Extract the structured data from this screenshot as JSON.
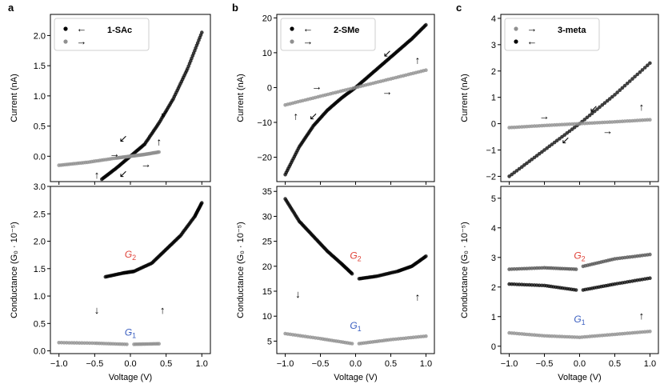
{
  "chart_data": [
    {
      "panel": "a",
      "type": "scatter",
      "legend_title": "1-SAc",
      "legend": [
        {
          "arrow": "←",
          "color": "#000000"
        },
        {
          "arrow": "→",
          "color": "#909090"
        }
      ],
      "top": {
        "ylabel": "Current (nA)",
        "ylim": [
          -0.42,
          2.35
        ],
        "yticks": [
          {
            "v": -0.5,
            "label": ""
          },
          {
            "v": 0.0,
            "label": "0.0"
          },
          {
            "v": 0.5,
            "label": "0.5"
          },
          {
            "v": 1.0,
            "label": "1.0"
          },
          {
            "v": 1.5,
            "label": "1.5"
          },
          {
            "v": 2.0,
            "label": "2.0"
          }
        ],
        "series": [
          {
            "color": "#000000",
            "x": [
              -0.4,
              -0.2,
              0,
              0.2,
              0.4,
              0.6,
              0.8,
              1.0
            ],
            "y": [
              -0.38,
              -0.2,
              0.0,
              0.2,
              0.55,
              0.95,
              1.45,
              2.05
            ]
          },
          {
            "color": "#909090",
            "x": [
              -1.0,
              -0.6,
              -0.2,
              0,
              0.2,
              0.4
            ],
            "y": [
              -0.15,
              -0.1,
              -0.03,
              0.0,
              0.03,
              0.07
            ]
          }
        ],
        "annotations": [
          {
            "text": "↑",
            "x": -0.47,
            "y": -0.3
          },
          {
            "text": "→",
            "x": -0.22,
            "y": 0.05
          },
          {
            "text": "↙",
            "x": -0.1,
            "y": 0.3
          },
          {
            "text": "↙",
            "x": -0.1,
            "y": -0.28
          },
          {
            "text": "→",
            "x": 0.22,
            "y": -0.12
          },
          {
            "text": "↑",
            "x": 0.4,
            "y": 0.25
          },
          {
            "text": "↙",
            "x": 0.48,
            "y": 0.72
          }
        ]
      },
      "bottom": {
        "ylabel": "Conductance (G₀ · 10⁻⁵)",
        "ylim": [
          -0.05,
          3.0
        ],
        "yticks": [
          {
            "v": 0.0,
            "label": "0.0"
          },
          {
            "v": 0.5,
            "label": "0.5"
          },
          {
            "v": 1.0,
            "label": "1.0"
          },
          {
            "v": 1.5,
            "label": "1.5"
          },
          {
            "v": 2.0,
            "label": "2.0"
          },
          {
            "v": 2.5,
            "label": "2.5"
          },
          {
            "v": 3.0,
            "label": "3.0"
          }
        ],
        "series": [
          {
            "color": "#000000",
            "x": [
              -0.35,
              -0.1,
              0.05,
              0.3,
              0.5,
              0.7,
              0.9,
              1.0
            ],
            "y": [
              1.35,
              1.42,
              1.45,
              1.6,
              1.85,
              2.1,
              2.45,
              2.7
            ]
          },
          {
            "color": "#909090",
            "x": [
              -1.0,
              -0.5,
              -0.05,
              0.05,
              0.4
            ],
            "y": [
              0.15,
              0.14,
              0.12,
              0.12,
              0.13
            ]
          }
        ],
        "labels": [
          {
            "name": "G",
            "sub": "2",
            "color": "#e0443a",
            "x": 0.0,
            "y": 1.7
          },
          {
            "name": "G",
            "sub": "1",
            "color": "#3b5fc0",
            "x": 0.0,
            "y": 0.28
          }
        ],
        "annotations": [
          {
            "text": "↓",
            "x": -0.47,
            "y": 0.75
          },
          {
            "text": "↑",
            "x": 0.45,
            "y": 0.75
          }
        ]
      }
    },
    {
      "panel": "b",
      "type": "scatter",
      "legend_title": "2-SMe",
      "legend": [
        {
          "arrow": "←",
          "color": "#000000"
        },
        {
          "arrow": "→",
          "color": "#909090"
        }
      ],
      "top": {
        "ylabel": "Current (nA)",
        "ylim": [
          -27,
          21
        ],
        "yticks": [
          {
            "v": -20,
            "label": "−20"
          },
          {
            "v": -10,
            "label": "−10"
          },
          {
            "v": 0,
            "label": "0"
          },
          {
            "v": 10,
            "label": "10"
          },
          {
            "v": 20,
            "label": "20"
          }
        ],
        "series": [
          {
            "color": "#000000",
            "x": [
              -1.0,
              -0.8,
              -0.6,
              -0.4,
              -0.2,
              0,
              0.2,
              0.4,
              0.6,
              0.8,
              1.0
            ],
            "y": [
              -25,
              -17,
              -11,
              -6.5,
              -3,
              0,
              3.5,
              7,
              10.5,
              14,
              18
            ]
          },
          {
            "color": "#909090",
            "x": [
              -1.0,
              -0.5,
              0,
              0.5,
              1.0
            ],
            "y": [
              -5,
              -2.5,
              0,
              2.5,
              5
            ]
          }
        ],
        "annotations": [
          {
            "text": "→",
            "x": -0.55,
            "y": 0.5
          },
          {
            "text": "↙",
            "x": 0.45,
            "y": 10
          },
          {
            "text": "→",
            "x": 0.45,
            "y": -1
          },
          {
            "text": "↑",
            "x": -0.85,
            "y": -8
          },
          {
            "text": "↙",
            "x": -0.6,
            "y": -8
          },
          {
            "text": "↑",
            "x": 0.88,
            "y": 8
          }
        ]
      },
      "bottom": {
        "ylabel": "Conductance (G₀ · 10⁻⁵)",
        "ylim": [
          2.5,
          36
        ],
        "yticks": [
          {
            "v": 5,
            "label": "5"
          },
          {
            "v": 10,
            "label": "10"
          },
          {
            "v": 15,
            "label": "15"
          },
          {
            "v": 20,
            "label": "20"
          },
          {
            "v": 25,
            "label": "25"
          },
          {
            "v": 30,
            "label": "30"
          },
          {
            "v": 35,
            "label": "35"
          }
        ],
        "series": [
          {
            "color": "#000000",
            "x": [
              -1.0,
              -0.8,
              -0.6,
              -0.4,
              -0.2,
              -0.05,
              0.05,
              0.3,
              0.6,
              0.8,
              1.0
            ],
            "y": [
              33.5,
              29,
              26,
              23,
              20.5,
              18.5,
              17.5,
              18,
              19,
              20,
              22
            ]
          },
          {
            "color": "#909090",
            "x": [
              -1.0,
              -0.5,
              -0.05,
              0.05,
              0.5,
              1.0
            ],
            "y": [
              6.5,
              5.5,
              4.5,
              4.5,
              5.3,
              6.0
            ]
          }
        ],
        "labels": [
          {
            "name": "G",
            "sub": "2",
            "color": "#e0443a",
            "x": 0.0,
            "y": 21.5
          },
          {
            "name": "G",
            "sub": "1",
            "color": "#3b5fc0",
            "x": 0.0,
            "y": 7.5
          }
        ],
        "annotations": [
          {
            "text": "↓",
            "x": -0.82,
            "y": 14.5
          },
          {
            "text": "↑",
            "x": 0.88,
            "y": 14
          }
        ]
      }
    },
    {
      "panel": "c",
      "type": "scatter",
      "legend_title": "3-meta",
      "legend": [
        {
          "arrow": "→",
          "color": "#909090"
        },
        {
          "arrow": "←",
          "color": "#000000"
        }
      ],
      "top": {
        "ylabel": "Current (nA)",
        "ylim": [
          -2.2,
          4.15
        ],
        "yticks": [
          {
            "v": -2,
            "label": "−2"
          },
          {
            "v": -1,
            "label": "−1"
          },
          {
            "v": 0,
            "label": "0"
          },
          {
            "v": 1,
            "label": "1"
          },
          {
            "v": 2,
            "label": "2"
          },
          {
            "v": 3,
            "label": "3"
          },
          {
            "v": 4,
            "label": "4"
          }
        ],
        "series": [
          {
            "color": "#000000",
            "x": [
              -1.0,
              -0.5,
              0,
              0.5,
              1.0
            ],
            "y": [
              -2.0,
              -1.0,
              0,
              1.1,
              2.3
            ]
          },
          {
            "color": "#909090",
            "x": [
              -1.0,
              -0.5,
              0,
              0.5,
              1.0
            ],
            "y": [
              -0.15,
              -0.07,
              0,
              0.07,
              0.15
            ]
          }
        ],
        "annotations": [
          {
            "text": "→",
            "x": -0.5,
            "y": 0.3
          },
          {
            "text": "↙",
            "x": 0.2,
            "y": 0.6
          },
          {
            "text": "↙",
            "x": -0.2,
            "y": -0.6
          },
          {
            "text": "→",
            "x": 0.4,
            "y": -0.25
          },
          {
            "text": "↑",
            "x": 0.88,
            "y": 0.65
          }
        ]
      },
      "bottom": {
        "ylabel": "Conductance (G₀ · 10⁻⁵)",
        "ylim": [
          -0.25,
          5.4
        ],
        "yticks": [
          {
            "v": 0,
            "label": "0"
          },
          {
            "v": 1,
            "label": "1"
          },
          {
            "v": 2,
            "label": "2"
          },
          {
            "v": 3,
            "label": "3"
          },
          {
            "v": 4,
            "label": "4"
          },
          {
            "v": 5,
            "label": "5"
          }
        ],
        "series": [
          {
            "color": "#000000",
            "x": [
              -1.0,
              -0.5,
              -0.05,
              0.05,
              0.5,
              1.0
            ],
            "y": [
              2.1,
              2.05,
              1.9,
              1.9,
              2.1,
              2.3
            ]
          },
          {
            "color": "#909090",
            "x": [
              -1.0,
              -0.5,
              0,
              0.5,
              1.0
            ],
            "y": [
              0.45,
              0.35,
              0.3,
              0.4,
              0.5
            ]
          },
          {
            "color": "#555555",
            "x": [
              -1.0,
              -0.5,
              -0.05,
              0.05,
              0.5,
              1.0
            ],
            "y": [
              2.6,
              2.65,
              2.6,
              2.7,
              2.95,
              3.1
            ]
          }
        ],
        "labels": [
          {
            "name": "G",
            "sub": "2",
            "color": "#e0443a",
            "x": 0.0,
            "y": 2.95
          },
          {
            "name": "G",
            "sub": "1",
            "color": "#3b5fc0",
            "x": 0.0,
            "y": 0.8
          }
        ],
        "annotations": [
          {
            "text": "↑",
            "x": 0.88,
            "y": 1.05
          }
        ]
      },
      "xlabel": "Voltage (V)"
    }
  ],
  "xlabel": "Voltage (V)",
  "xlim": [
    -1.12,
    1.12
  ],
  "xticks": [
    {
      "v": -1.0,
      "label": "−1.0"
    },
    {
      "v": -0.5,
      "label": "−0.5"
    },
    {
      "v": 0.0,
      "label": "0.0"
    },
    {
      "v": 0.5,
      "label": "0.5"
    },
    {
      "v": 1.0,
      "label": "1.0"
    }
  ]
}
